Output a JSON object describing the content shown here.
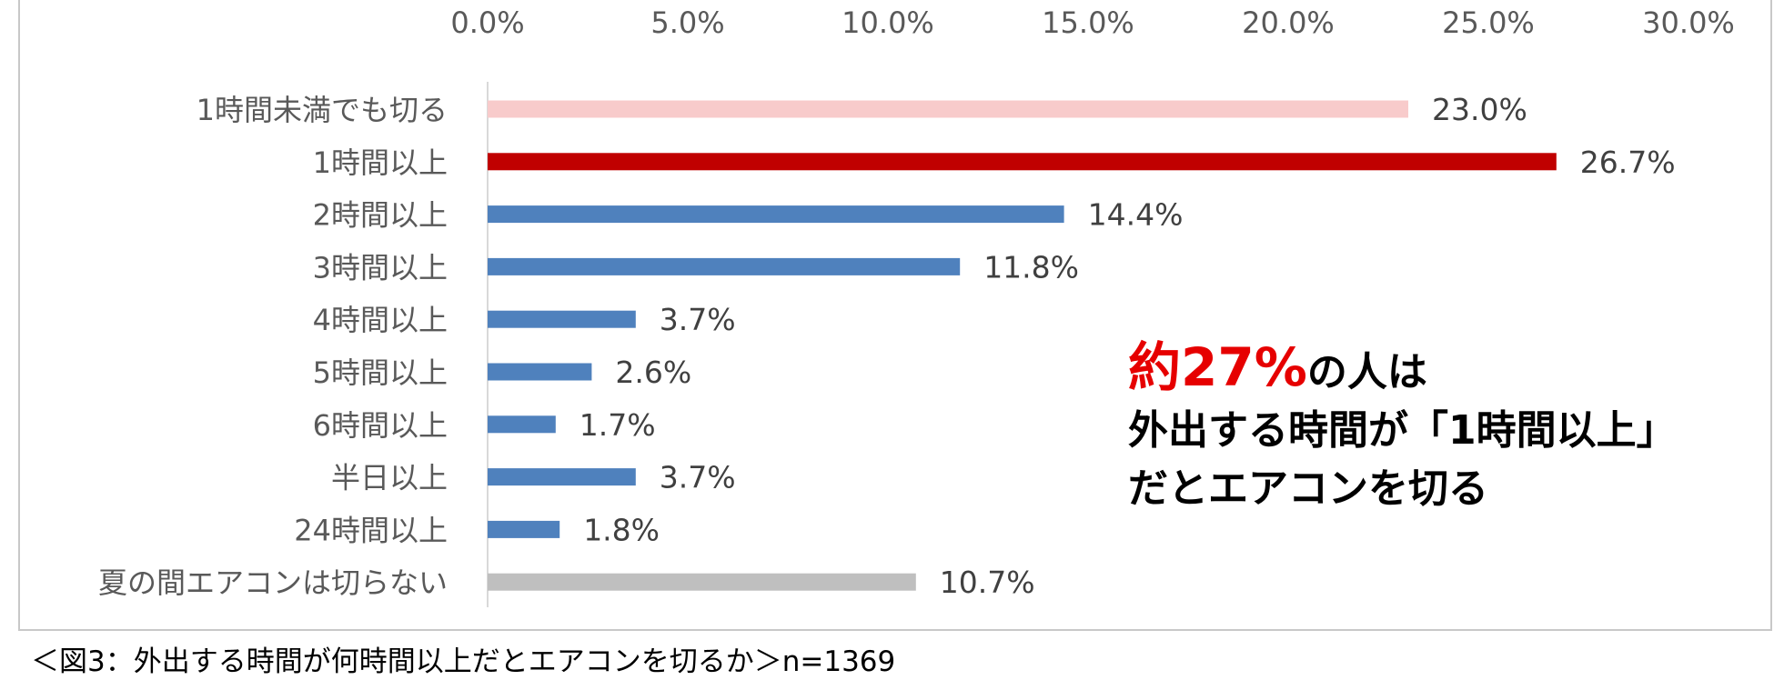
{
  "chart_data": {
    "type": "bar",
    "orientation": "horizontal",
    "categories": [
      "1時間未満でも切る",
      "1時間以上",
      "2時間以上",
      "3時間以上",
      "4時間以上",
      "5時間以上",
      "6時間以上",
      "半日以上",
      "24時間以上",
      "夏の間エアコンは切らない"
    ],
    "values": [
      23.0,
      26.7,
      14.4,
      11.8,
      3.7,
      2.6,
      1.7,
      3.7,
      1.8,
      10.7
    ],
    "data_labels": [
      "23.0%",
      "26.7%",
      "14.4%",
      "11.8%",
      "3.7%",
      "2.6%",
      "1.7%",
      "3.7%",
      "1.8%",
      "10.7%"
    ],
    "bar_colors": [
      "#f8cbcb",
      "#c00000",
      "#4f81bd",
      "#4f81bd",
      "#4f81bd",
      "#4f81bd",
      "#4f81bd",
      "#4f81bd",
      "#4f81bd",
      "#bfbfbf"
    ],
    "xlim": [
      0,
      30
    ],
    "x_ticks": [
      "0.0%",
      "5.0%",
      "10.0%",
      "15.0%",
      "20.0%",
      "25.0%",
      "30.0%"
    ],
    "x_axis_position": "top",
    "grid": false,
    "legend": "none"
  },
  "callout": {
    "highlight": "約27%",
    "line1_rest": "の人は",
    "line2": "外出する時間が「1時間以上」",
    "line3": "だとエアコンを切る",
    "highlight_color": "#e60000"
  },
  "caption": "＜図3：外出する時間が何時間以上だとエアコンを切るか＞n=1369"
}
